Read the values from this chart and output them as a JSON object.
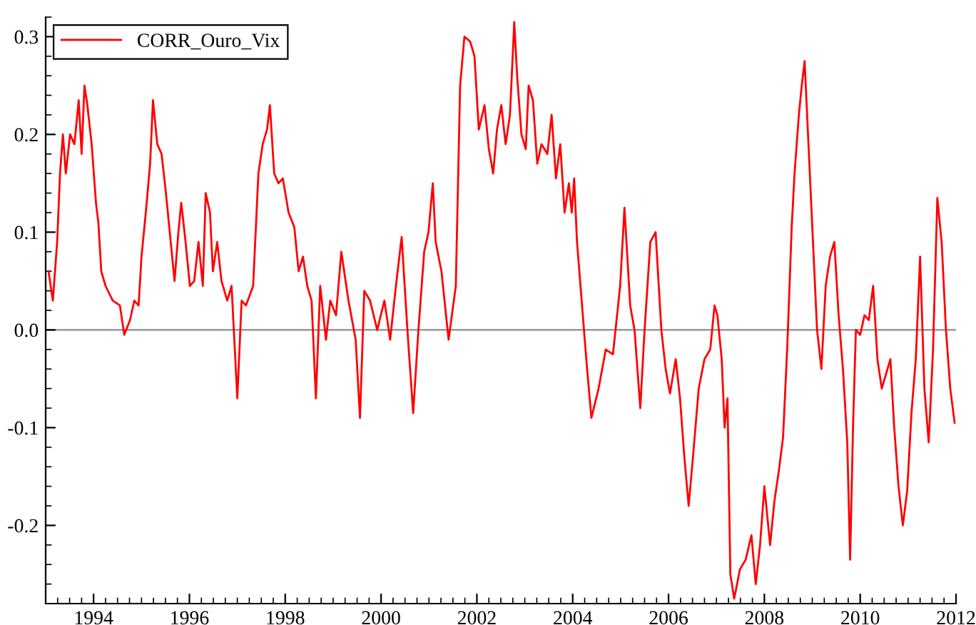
{
  "chart_data": {
    "type": "line",
    "x": [
      1993.06,
      1993.15,
      1993.24,
      1993.3,
      1993.36,
      1993.42,
      1993.51,
      1993.6,
      1993.69,
      1993.75,
      1993.81,
      1993.87,
      1993.96,
      1994.05,
      1994.1,
      1994.16,
      1994.25,
      1994.4,
      1994.55,
      1994.64,
      1994.76,
      1994.85,
      1994.94,
      1995.0,
      1995.09,
      1995.18,
      1995.24,
      1995.33,
      1995.42,
      1995.51,
      1995.6,
      1995.69,
      1995.77,
      1995.83,
      1995.92,
      1996.01,
      1996.1,
      1996.19,
      1996.28,
      1996.34,
      1996.43,
      1996.49,
      1996.58,
      1996.67,
      1996.79,
      1996.88,
      1997.0,
      1997.09,
      1997.18,
      1997.33,
      1997.44,
      1997.53,
      1997.62,
      1997.68,
      1997.77,
      1997.86,
      1997.95,
      1998.07,
      1998.19,
      1998.28,
      1998.37,
      1998.46,
      1998.55,
      1998.64,
      1998.73,
      1998.85,
      1998.94,
      1999.06,
      1999.17,
      1999.32,
      1999.47,
      1999.56,
      1999.65,
      1999.77,
      1999.92,
      2000.07,
      2000.19,
      2000.31,
      2000.43,
      2000.55,
      2000.67,
      2000.78,
      2000.9,
      2000.99,
      2001.08,
      2001.14,
      2001.26,
      2001.41,
      2001.56,
      2001.65,
      2001.74,
      2001.86,
      2001.95,
      2002.04,
      2002.16,
      2002.25,
      2002.34,
      2002.42,
      2002.51,
      2002.6,
      2002.69,
      2002.78,
      2002.84,
      2002.93,
      2003.02,
      2003.08,
      2003.17,
      2003.26,
      2003.35,
      2003.47,
      2003.56,
      2003.65,
      2003.74,
      2003.83,
      2003.92,
      2003.98,
      2004.03,
      2004.09,
      2004.3,
      2004.39,
      2004.54,
      2004.69,
      2004.84,
      2004.99,
      2005.08,
      2005.2,
      2005.29,
      2005.41,
      2005.5,
      2005.62,
      2005.73,
      2005.85,
      2005.94,
      2006.03,
      2006.15,
      2006.24,
      2006.33,
      2006.42,
      2006.51,
      2006.63,
      2006.75,
      2006.87,
      2006.96,
      2007.02,
      2007.11,
      2007.17,
      2007.23,
      2007.29,
      2007.37,
      2007.49,
      2007.61,
      2007.73,
      2007.82,
      2007.91,
      2008.0,
      2008.12,
      2008.21,
      2008.3,
      2008.39,
      2008.48,
      2008.57,
      2008.63,
      2008.72,
      2008.78,
      2008.84,
      2008.93,
      2009.01,
      2009.1,
      2009.19,
      2009.28,
      2009.37,
      2009.46,
      2009.55,
      2009.64,
      2009.73,
      2009.79,
      2009.85,
      2009.91,
      2010.0,
      2010.09,
      2010.18,
      2010.27,
      2010.36,
      2010.45,
      2010.54,
      2010.63,
      2010.71,
      2010.8,
      2010.89,
      2010.98,
      2011.07,
      2011.16,
      2011.25,
      2011.34,
      2011.43,
      2011.52,
      2011.61,
      2011.7,
      2011.79,
      2011.88,
      2011.97
    ],
    "series": [
      {
        "name": "CORR_Ouro_Vix",
        "color": "#ff0000",
        "values": [
          0.06,
          0.03,
          0.09,
          0.16,
          0.2,
          0.16,
          0.2,
          0.19,
          0.235,
          0.18,
          0.25,
          0.23,
          0.19,
          0.13,
          0.11,
          0.06,
          0.045,
          0.03,
          0.025,
          -0.005,
          0.01,
          0.03,
          0.025,
          0.075,
          0.12,
          0.17,
          0.235,
          0.19,
          0.18,
          0.14,
          0.095,
          0.05,
          0.1,
          0.13,
          0.09,
          0.045,
          0.05,
          0.09,
          0.045,
          0.14,
          0.12,
          0.06,
          0.09,
          0.05,
          0.03,
          0.045,
          -0.07,
          0.03,
          0.025,
          0.045,
          0.16,
          0.19,
          0.205,
          0.23,
          0.16,
          0.15,
          0.155,
          0.12,
          0.105,
          0.06,
          0.075,
          0.045,
          0.03,
          -0.07,
          0.045,
          -0.01,
          0.03,
          0.015,
          0.08,
          0.03,
          -0.01,
          -0.09,
          0.04,
          0.03,
          0.0,
          0.03,
          -0.01,
          0.045,
          0.095,
          0.0,
          -0.085,
          0.0,
          0.08,
          0.1,
          0.15,
          0.09,
          0.06,
          -0.01,
          0.045,
          0.25,
          0.3,
          0.295,
          0.28,
          0.205,
          0.23,
          0.185,
          0.16,
          0.205,
          0.23,
          0.19,
          0.22,
          0.315,
          0.26,
          0.2,
          0.185,
          0.25,
          0.235,
          0.17,
          0.19,
          0.18,
          0.22,
          0.155,
          0.19,
          0.12,
          0.15,
          0.12,
          0.155,
          0.09,
          -0.04,
          -0.09,
          -0.06,
          -0.02,
          -0.025,
          0.045,
          0.125,
          0.025,
          0.0,
          -0.08,
          0.0,
          0.09,
          0.1,
          0.0,
          -0.04,
          -0.065,
          -0.03,
          -0.07,
          -0.13,
          -0.18,
          -0.13,
          -0.06,
          -0.03,
          -0.02,
          0.025,
          0.015,
          -0.03,
          -0.1,
          -0.07,
          -0.25,
          -0.275,
          -0.245,
          -0.235,
          -0.21,
          -0.26,
          -0.22,
          -0.16,
          -0.22,
          -0.175,
          -0.145,
          -0.11,
          -0.015,
          0.105,
          0.16,
          0.22,
          0.25,
          0.275,
          0.18,
          0.095,
          0.0,
          -0.04,
          0.045,
          0.075,
          0.09,
          0.015,
          -0.04,
          -0.115,
          -0.235,
          -0.1,
          0.0,
          -0.005,
          0.015,
          0.01,
          0.045,
          -0.03,
          -0.06,
          -0.045,
          -0.03,
          -0.1,
          -0.16,
          -0.2,
          -0.165,
          -0.085,
          -0.03,
          0.075,
          -0.06,
          -0.115,
          -0.02,
          0.135,
          0.09,
          0.0,
          -0.06,
          -0.095
        ]
      }
    ],
    "xlim": [
      1993.0,
      2012.0
    ],
    "xticks": [
      1994,
      1996,
      1998,
      2000,
      2002,
      2004,
      2006,
      2008,
      2010,
      2012
    ],
    "ylim": [
      -0.28,
      0.32
    ],
    "yticks": [
      {
        "value": -0.2,
        "label": "-0.2"
      },
      {
        "value": -0.1,
        "label": "-0.1"
      },
      {
        "value": 0.0,
        "label": "0.0"
      },
      {
        "value": 0.1,
        "label": "0.1"
      },
      {
        "value": 0.2,
        "label": "0.2"
      },
      {
        "value": 0.3,
        "label": "0.3"
      }
    ],
    "ref_lines": [
      {
        "axis": "y",
        "value": 0.0,
        "color": "#a0a0a0"
      }
    ],
    "legend": "top left",
    "grid": false
  }
}
